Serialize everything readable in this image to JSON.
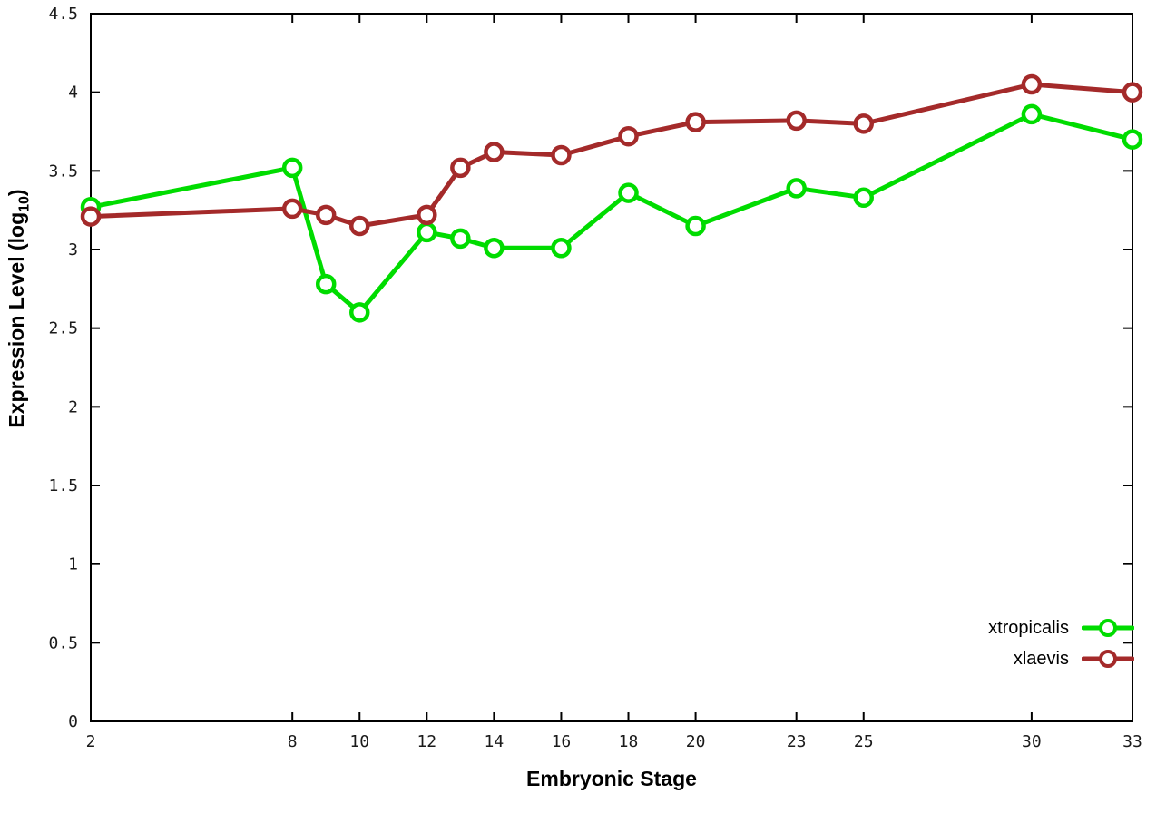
{
  "chart_data": {
    "type": "line",
    "title": "",
    "xlabel": "Embryonic Stage",
    "ylabel": "Expression Level (log10)",
    "ylabel_parts": {
      "pre": "Expression Level (log",
      "sub": "10",
      "post": ")"
    },
    "xlim": [
      2,
      33
    ],
    "ylim": [
      0,
      4.5
    ],
    "x_ticks": [
      2,
      8,
      10,
      12,
      14,
      16,
      18,
      20,
      23,
      25,
      30,
      33
    ],
    "y_ticks": [
      0,
      0.5,
      1,
      1.5,
      2,
      2.5,
      3,
      3.5,
      4,
      4.5
    ],
    "y_tick_labels": [
      "0",
      "0.5",
      "1",
      "1.5",
      "2",
      "2.5",
      "3",
      "3.5",
      "4",
      "4.5"
    ],
    "grid": false,
    "legend_position": "bottom-right-inside",
    "marker": "open-circle",
    "series": [
      {
        "name": "xtropicalis",
        "color": "#00dc00",
        "x": [
          2,
          8,
          9,
          10,
          12,
          13,
          14,
          16,
          18,
          20,
          23,
          25,
          30,
          33
        ],
        "y": [
          3.27,
          3.52,
          2.78,
          2.6,
          3.11,
          3.07,
          3.01,
          3.01,
          3.36,
          3.15,
          3.39,
          3.33,
          3.86,
          3.7
        ]
      },
      {
        "name": "xlaevis",
        "color": "#a42a2a",
        "x": [
          2,
          8,
          9,
          10,
          12,
          13,
          14,
          16,
          18,
          20,
          23,
          25,
          30,
          33
        ],
        "y": [
          3.21,
          3.26,
          3.22,
          3.15,
          3.22,
          3.52,
          3.62,
          3.6,
          3.72,
          3.81,
          3.82,
          3.8,
          4.05,
          4.0
        ]
      }
    ]
  }
}
